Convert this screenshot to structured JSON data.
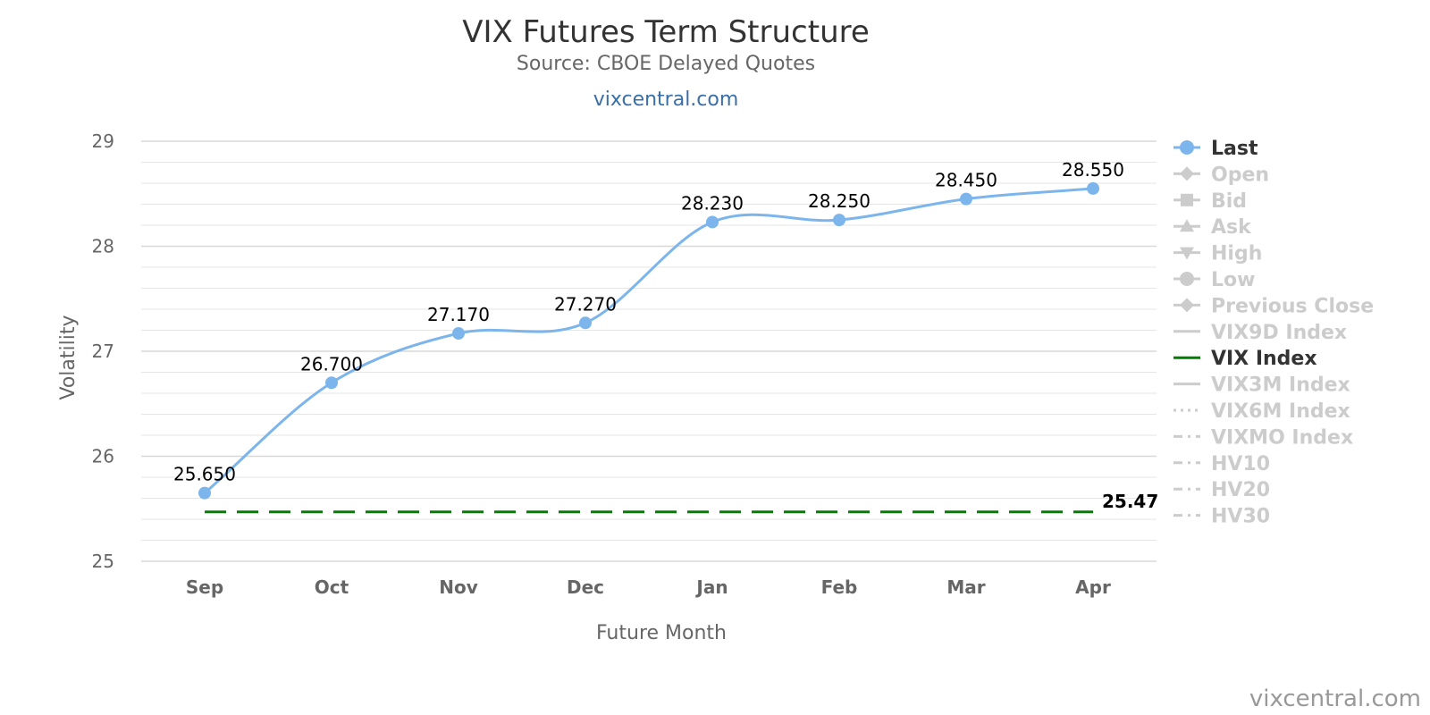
{
  "chart_data": {
    "type": "line",
    "title": "VIX Futures Term Structure",
    "subtitle": "Source: CBOE Delayed Quotes",
    "link_text": "vixcentral.com",
    "credit": "vixcentral.com",
    "xlabel": "Future Month",
    "ylabel": "Volatility",
    "categories": [
      "Sep",
      "Oct",
      "Nov",
      "Dec",
      "Jan",
      "Feb",
      "Mar",
      "Apr"
    ],
    "ylim": [
      25,
      29
    ],
    "yticks": [
      25,
      26,
      27,
      28,
      29
    ],
    "grid": true,
    "legend_position": "right",
    "series": [
      {
        "name": "Last",
        "values": [
          25.65,
          26.7,
          27.17,
          27.27,
          28.23,
          28.25,
          28.45,
          28.55
        ],
        "labels": [
          "25.650",
          "26.700",
          "27.170",
          "27.270",
          "28.230",
          "28.250",
          "28.450",
          "28.550"
        ],
        "color": "#7cb5ec"
      },
      {
        "name": "VIX Index",
        "value": 25.47,
        "label": "25.47",
        "color": "#008000",
        "style": "dashed"
      }
    ],
    "legend": [
      {
        "name": "Last",
        "active": true,
        "symbol": "circle-line",
        "color": "#7cb5ec"
      },
      {
        "name": "Open",
        "active": false,
        "symbol": "diamond-line"
      },
      {
        "name": "Bid",
        "active": false,
        "symbol": "square-line"
      },
      {
        "name": "Ask",
        "active": false,
        "symbol": "triangle-line"
      },
      {
        "name": "High",
        "active": false,
        "symbol": "triangle-down-line"
      },
      {
        "name": "Low",
        "active": false,
        "symbol": "circle-line"
      },
      {
        "name": "Previous Close",
        "active": false,
        "symbol": "diamond-line"
      },
      {
        "name": "VIX9D Index",
        "active": false,
        "symbol": "solid"
      },
      {
        "name": "VIX Index",
        "active": true,
        "symbol": "solid",
        "color": "#008000"
      },
      {
        "name": "VIX3M Index",
        "active": false,
        "symbol": "solid"
      },
      {
        "name": "VIX6M Index",
        "active": false,
        "symbol": "dotted"
      },
      {
        "name": "VIXMO Index",
        "active": false,
        "symbol": "dashdot"
      },
      {
        "name": "HV10",
        "active": false,
        "symbol": "dashdot"
      },
      {
        "name": "HV20",
        "active": false,
        "symbol": "dashdot"
      },
      {
        "name": "HV30",
        "active": false,
        "symbol": "dashdot"
      }
    ],
    "inactive_color": "#cccccc",
    "active_text_color": "#333333"
  }
}
